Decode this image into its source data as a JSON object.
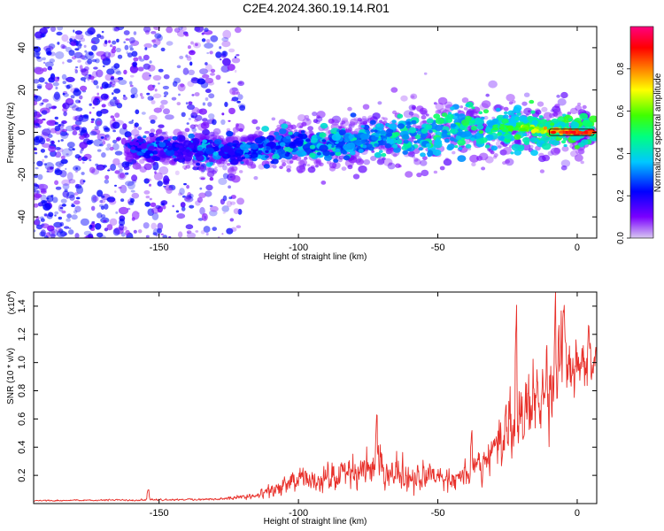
{
  "title": "C2E4.2024.360.19.14.R01",
  "chart_data": [
    {
      "type": "heatmap",
      "xlabel": "Height of straight line (km)",
      "ylabel": "Frequency (Hz)",
      "xlim": [
        -195,
        7
      ],
      "ylim": [
        -50,
        50
      ],
      "xticks": [
        -150,
        -100,
        -50,
        0
      ],
      "yticks": [
        -40,
        -20,
        0,
        20,
        40
      ],
      "colorbar": {
        "label": "Normalized spectral amplitude",
        "range": [
          0,
          1
        ],
        "ticks": [
          "0.0",
          "0.2",
          "0.4",
          "0.6",
          "0.8"
        ],
        "tick_values": [
          0.0,
          0.2,
          0.4,
          0.6,
          0.8
        ],
        "colors": [
          "#d8c8f0",
          "#7a00ff",
          "#0000ff",
          "#00c8ff",
          "#00ff80",
          "#40ff00",
          "#ffff00",
          "#ff8000",
          "#ff0000",
          "#ff0080"
        ]
      },
      "ridge": {
        "points": [
          [
            -160,
            -8
          ],
          [
            -140,
            -8
          ],
          [
            -120,
            -8
          ],
          [
            -100,
            -6
          ],
          [
            -80,
            -4
          ],
          [
            -60,
            -2
          ],
          [
            -40,
            1
          ],
          [
            -20,
            2
          ],
          [
            -10,
            1
          ],
          [
            0,
            0
          ],
          [
            6,
            0
          ]
        ],
        "peak_amplitude": 0.9
      },
      "noise_region": {
        "xmin": -195,
        "xmax": -120,
        "amplitude": 0.25
      }
    },
    {
      "type": "line",
      "xlabel": "Height of straight line (km)",
      "ylabel": "SNR (10 * v/v)",
      "y_multiplier": "(x10",
      "y_multiplier_exp": "4",
      "xlim": [
        -195,
        7
      ],
      "ylim": [
        0,
        1.5
      ],
      "xticks": [
        -150,
        -100,
        -50,
        0
      ],
      "yticks": [
        0.2,
        0.4,
        0.6,
        0.8,
        1.0,
        1.2,
        1.4
      ],
      "color": "#e8302a",
      "envelope": {
        "x": [
          -195,
          -160,
          -130,
          -115,
          -105,
          -100,
          -90,
          -80,
          -72,
          -65,
          -55,
          -45,
          -38,
          -32,
          -28,
          -24,
          -20,
          -15,
          -10,
          -7,
          -3,
          0,
          3,
          6
        ],
        "mean": [
          0.02,
          0.025,
          0.03,
          0.05,
          0.12,
          0.15,
          0.17,
          0.2,
          0.25,
          0.2,
          0.18,
          0.17,
          0.22,
          0.3,
          0.45,
          0.55,
          0.6,
          0.7,
          0.8,
          0.9,
          0.95,
          1.0,
          0.95,
          1.0
        ],
        "amplitude": [
          0.005,
          0.008,
          0.01,
          0.03,
          0.08,
          0.1,
          0.12,
          0.15,
          0.2,
          0.15,
          0.12,
          0.1,
          0.12,
          0.18,
          0.25,
          0.3,
          0.3,
          0.35,
          0.4,
          0.4,
          0.3,
          0.25,
          0.2,
          0.15
        ]
      },
      "peaks": [
        [
          -154,
          0.1
        ],
        [
          -72,
          0.58
        ],
        [
          -38,
          0.5
        ],
        [
          -22,
          1.35
        ],
        [
          -8,
          1.48
        ],
        [
          -5,
          1.45
        ],
        [
          4,
          1.25
        ]
      ]
    }
  ]
}
